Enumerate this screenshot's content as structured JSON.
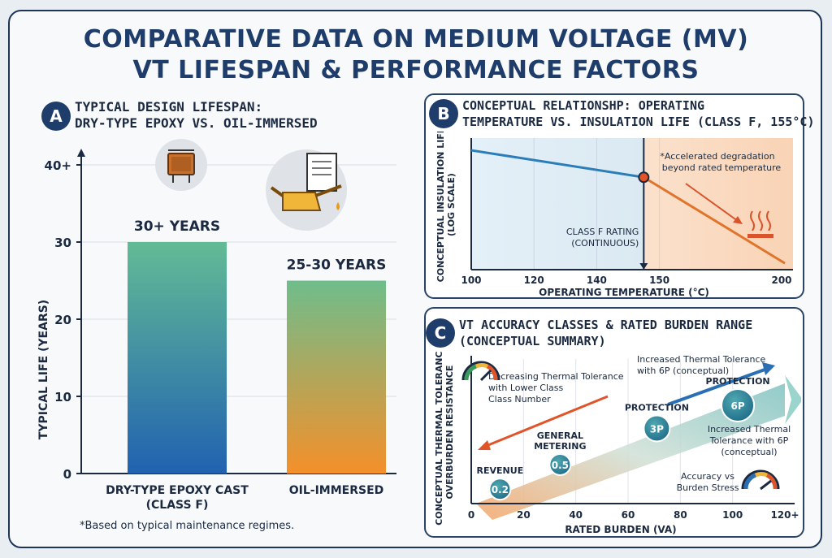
{
  "title_line1": "COMPARATIVE DATA ON MEDIUM VOLTAGE (MV)",
  "title_line2": "VT LIFESPAN & PERFORMANCE FACTORS",
  "footnote": "*Based on typical maintenance regimes.",
  "panel_a": {
    "badge": "A",
    "title_line1": "TYPICAL DESIGN LIFESPAN:",
    "title_line2": "DRY-TYPE EPOXY VS. OIL-IMMERSED",
    "icons": [
      "epoxy-transformer-icon",
      "oil-can-document-icon"
    ]
  },
  "panel_b": {
    "badge": "B",
    "title_line1": "CONCEPTUAL RELATIONSHP: OPERATING",
    "title_line2": "TEMPERATURE VS. INSULATION LIFE (CLASS F, 155°C)",
    "icons": [
      "heat-waves-icon"
    ]
  },
  "panel_c": {
    "badge": "C",
    "title_line1": "VT ACCURACY CLASSES & RATED BURDEN RANGE",
    "title_line2": "(CONCEPTUAL SUMMARY)",
    "icons": [
      "gauge-high-icon",
      "gauge-stress-icon"
    ]
  },
  "colors": {
    "navy": "#1f3d6b",
    "teal": "#5fb89b",
    "blue": "#2a6fb3",
    "orange": "#f2902e",
    "red": "#e0542a"
  },
  "chart_data": [
    {
      "id": "A",
      "type": "bar",
      "title": "TYPICAL DESIGN LIFESPAN: DRY-TYPE EPOXY VS. OIL-IMMERSED",
      "categories": [
        "DRY-TYPE EPOXY CAST\n(CLASS F)",
        "OIL-IMMERSED"
      ],
      "values": [
        30,
        25
      ],
      "data_labels": [
        "30+ YEARS",
        "25-30 YEARS"
      ],
      "ylabel": "TYPICAL LIFE (YEARS)",
      "xlabel": "",
      "yticks": [
        "0",
        "10",
        "20",
        "30",
        "40+"
      ],
      "ylim": [
        0,
        40
      ],
      "grid": true
    },
    {
      "id": "B",
      "type": "line",
      "title": "CONCEPTUAL RELATIONSHP: OPERATING TEMPERATURE VS. INSULATION LIFE (CLASS F, 155°C)",
      "xlabel": "OPERATING TEMPERATURE (°C)",
      "ylabel": "CONCEPTUAL INSULATION LIFE",
      "ylabel2": "(LOG SCALE)",
      "xticks": [
        "100",
        "120",
        "140",
        "150",
        "200"
      ],
      "xlim": [
        100,
        200
      ],
      "ylim": [
        0,
        1
      ],
      "series": [
        {
          "name": "normal",
          "x": [
            100,
            155
          ],
          "y": [
            0.93,
            0.72
          ]
        },
        {
          "name": "accelerated",
          "x": [
            155,
            200
          ],
          "y": [
            0.72,
            0.05
          ]
        }
      ],
      "threshold": {
        "x": 155,
        "label_line1": "CLASS F RATING",
        "label_line2": "(CONTINUOUS)"
      },
      "annotation_line1": "*Accelerated degradation",
      "annotation_line2": "beyond rated temperature",
      "grid": true
    },
    {
      "id": "C",
      "type": "scatter",
      "title": "VT ACCURACY CLASSES & RATED BURDEN RANGE (CONCEPTUAL SUMMARY)",
      "xlabel": "RATED BURDEN (VA)",
      "ylabel": "CONCEPTUAL THERMAL TOLERANCE /",
      "ylabel2": "OVERBURDEN RESISTANCE",
      "xticks": [
        "0",
        "20",
        "40",
        "60",
        "80",
        "100",
        "120+"
      ],
      "xlim": [
        0,
        120
      ],
      "ylim": [
        0,
        1
      ],
      "points": [
        {
          "label": "REVENUE",
          "value": "0.2",
          "x": 11,
          "y": 0.1
        },
        {
          "label": "GENERAL\nMETERING",
          "value": "0.5",
          "x": 34,
          "y": 0.27
        },
        {
          "label": "PROTECTION",
          "value": "3P",
          "x": 71,
          "y": 0.52
        },
        {
          "label": "PROTECTION",
          "value": "6P",
          "x": 102,
          "y": 0.68
        }
      ],
      "annotations": {
        "decreasing_line1": "Decreasing Thermal Tolerance",
        "decreasing_line2": "with Lower Class",
        "decreasing_line3": "Class Number",
        "increased_top_line1": "Increased Thermal Tolerance",
        "increased_top_line2": "with 6P (conceptual)",
        "increased_right_line1": "Increased Thermal",
        "increased_right_line2": "Tolerance with 6P",
        "increased_right_line3": "(conceptual)",
        "accuracy_line1": "Accuracy vs",
        "accuracy_line2": "Burden Stress"
      },
      "grid": true
    }
  ]
}
